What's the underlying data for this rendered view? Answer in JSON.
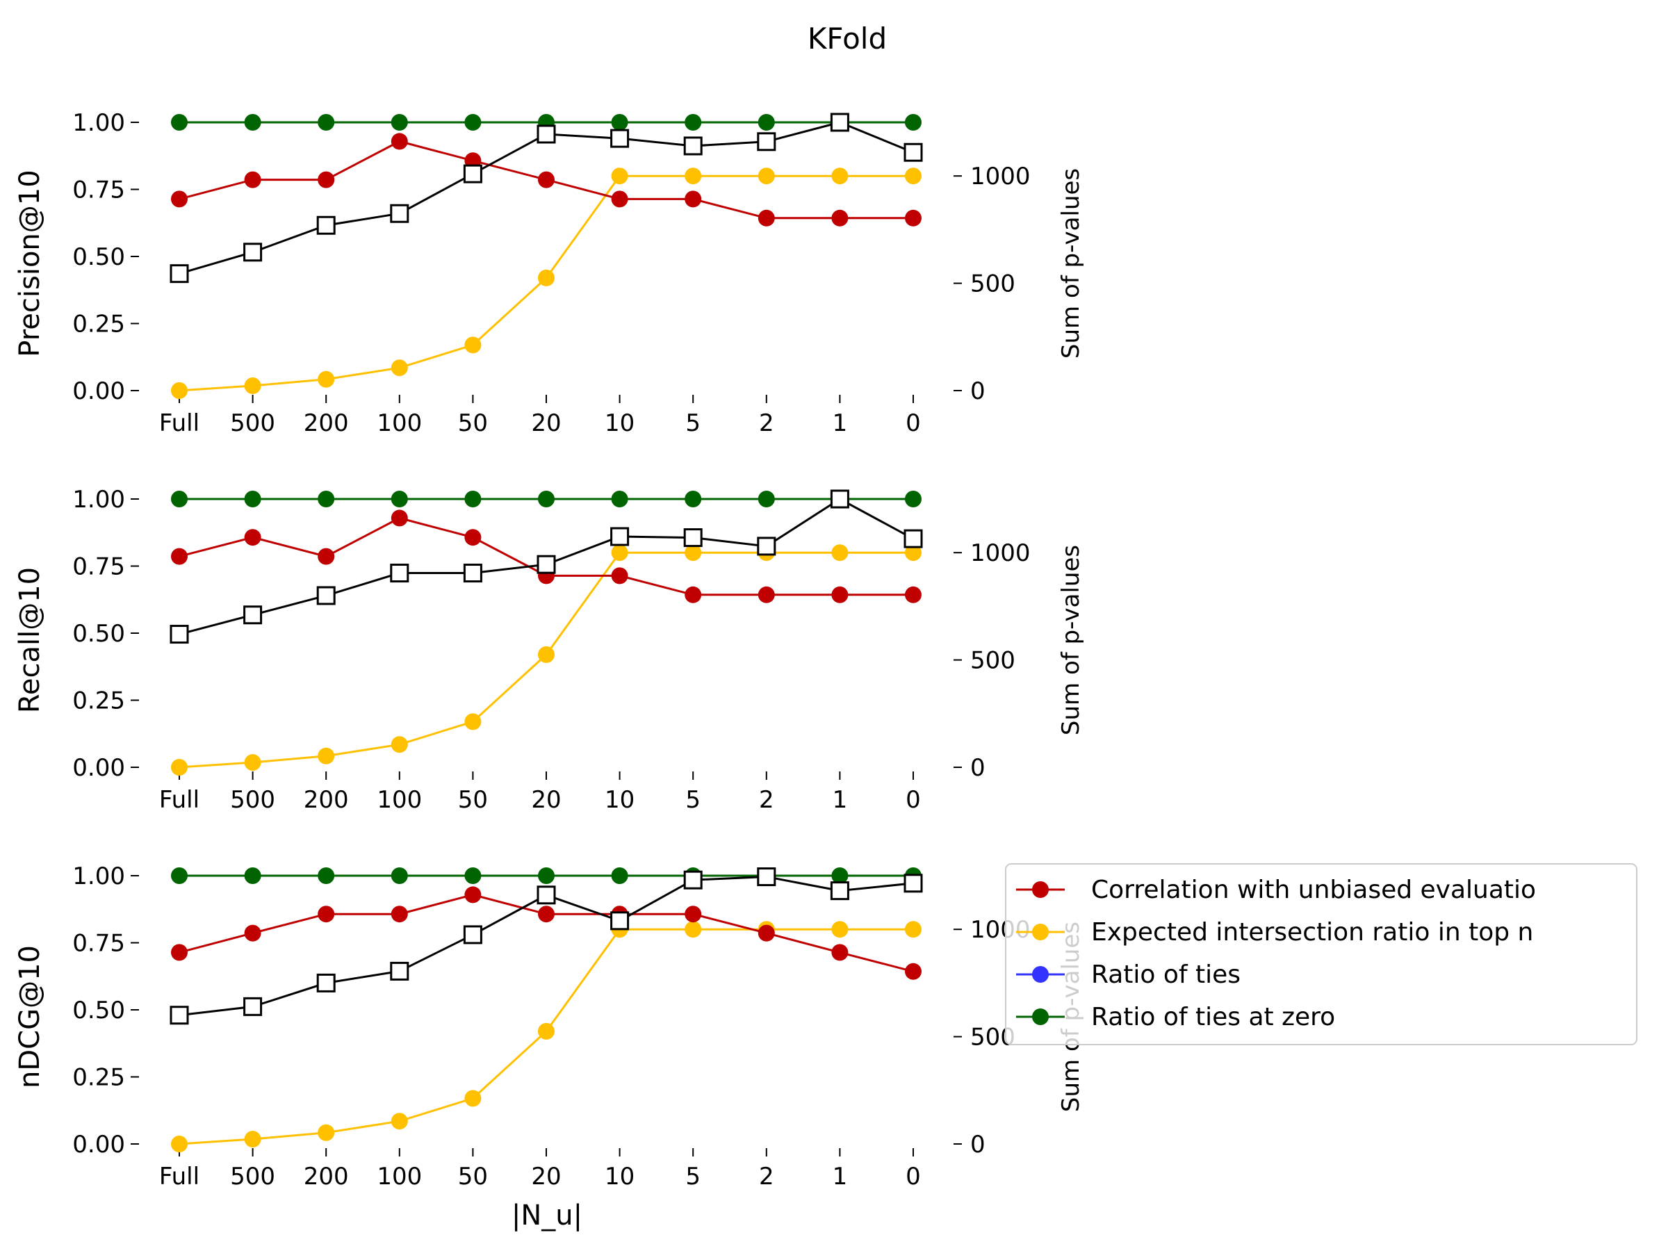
{
  "figure": {
    "title": "KFold",
    "xlabel": "|N_u|"
  },
  "legend": {
    "entries": [
      {
        "label": "Correlation with unbiased evaluatio",
        "color": "#c00000",
        "marker": "circle"
      },
      {
        "label": "Expected intersection ratio in top n",
        "color": "#ffc000",
        "marker": "circle"
      },
      {
        "label": "Ratio of ties",
        "color": "#3333ff",
        "marker": "circle"
      },
      {
        "label": "Ratio of ties at zero",
        "color": "#006400",
        "marker": "circle"
      }
    ]
  },
  "colors": {
    "correlation": "#c00000",
    "expected_intersection": "#ffc000",
    "ties_at_zero": "#006400",
    "sum_p_values": "#000000"
  },
  "chart_data": [
    {
      "type": "line",
      "ylabel": "Precision@10",
      "ylabel_right": "Sum of p-values",
      "categories": [
        "Full",
        "500",
        "200",
        "100",
        "50",
        "20",
        "10",
        "5",
        "2",
        "1",
        "0"
      ],
      "ylim": [
        0,
        1
      ],
      "yticks": [
        "0.00",
        "0.25",
        "0.50",
        "0.75",
        "1.00"
      ],
      "ylim_right": [
        0,
        1250
      ],
      "yticks_right": [
        "0",
        "500",
        "1000"
      ],
      "series": [
        {
          "name": "Expected intersection ratio in top n",
          "axis": "left",
          "color": "#ffc000",
          "values": [
            0.0,
            0.018,
            0.042,
            0.085,
            0.17,
            0.42,
            0.8,
            0.8,
            0.8,
            0.8,
            0.8
          ]
        },
        {
          "name": "Correlation with unbiased evaluatio",
          "axis": "left",
          "color": "#c00000",
          "values": [
            0.714,
            0.786,
            0.786,
            0.929,
            0.857,
            0.786,
            0.714,
            0.714,
            0.643,
            0.643,
            0.643
          ]
        },
        {
          "name": "Ratio of ties at zero",
          "axis": "left",
          "color": "#006400",
          "values": [
            1,
            1,
            1,
            1,
            1,
            1,
            1,
            1,
            1,
            1,
            1
          ]
        },
        {
          "axis": "right",
          "color": "#000000",
          "marker": "square",
          "values": [
            545,
            645,
            770,
            825,
            1010,
            1195,
            1175,
            1140,
            1160,
            1250,
            1110
          ]
        }
      ]
    },
    {
      "type": "line",
      "ylabel": "Recall@10",
      "ylabel_right": "Sum of p-values",
      "categories": [
        "Full",
        "500",
        "200",
        "100",
        "50",
        "20",
        "10",
        "5",
        "2",
        "1",
        "0"
      ],
      "ylim": [
        0,
        1
      ],
      "yticks": [
        "0.00",
        "0.25",
        "0.50",
        "0.75",
        "1.00"
      ],
      "ylim_right": [
        0,
        1250
      ],
      "yticks_right": [
        "0",
        "500",
        "1000"
      ],
      "series": [
        {
          "name": "Expected intersection ratio in top n",
          "axis": "left",
          "color": "#ffc000",
          "values": [
            0.0,
            0.018,
            0.042,
            0.085,
            0.17,
            0.42,
            0.8,
            0.8,
            0.8,
            0.8,
            0.8
          ]
        },
        {
          "name": "Correlation with unbiased evaluatio",
          "axis": "left",
          "color": "#c00000",
          "values": [
            0.786,
            0.857,
            0.786,
            0.929,
            0.857,
            0.714,
            0.714,
            0.643,
            0.643,
            0.643,
            0.643
          ]
        },
        {
          "name": "Ratio of ties at zero",
          "axis": "left",
          "color": "#006400",
          "values": [
            1,
            1,
            1,
            1,
            1,
            1,
            1,
            1,
            1,
            1,
            1
          ]
        },
        {
          "axis": "right",
          "color": "#000000",
          "marker": "square",
          "values": [
            620,
            710,
            800,
            905,
            905,
            945,
            1075,
            1070,
            1030,
            1250,
            1065
          ]
        }
      ]
    },
    {
      "type": "line",
      "ylabel": "nDCG@10",
      "ylabel_right": "Sum of p-values",
      "categories": [
        "Full",
        "500",
        "200",
        "100",
        "50",
        "20",
        "10",
        "5",
        "2",
        "1",
        "0"
      ],
      "ylim": [
        0,
        1
      ],
      "yticks": [
        "0.00",
        "0.25",
        "0.50",
        "0.75",
        "1.00"
      ],
      "ylim_right": [
        0,
        1250
      ],
      "yticks_right": [
        "0",
        "500",
        "1000"
      ],
      "series": [
        {
          "name": "Expected intersection ratio in top n",
          "axis": "left",
          "color": "#ffc000",
          "values": [
            0.0,
            0.018,
            0.042,
            0.085,
            0.17,
            0.42,
            0.8,
            0.8,
            0.8,
            0.8,
            0.8
          ]
        },
        {
          "name": "Correlation with unbiased evaluatio",
          "axis": "left",
          "color": "#c00000",
          "values": [
            0.714,
            0.786,
            0.857,
            0.857,
            0.929,
            0.857,
            0.857,
            0.857,
            0.786,
            0.714,
            0.643
          ]
        },
        {
          "name": "Ratio of ties at zero",
          "axis": "left",
          "color": "#006400",
          "values": [
            1,
            1,
            1,
            1,
            1,
            1,
            1,
            1,
            1,
            1,
            1
          ]
        },
        {
          "axis": "right",
          "color": "#000000",
          "marker": "square",
          "values": [
            600,
            640,
            750,
            805,
            975,
            1160,
            1040,
            1230,
            1245,
            1180,
            1215
          ]
        }
      ]
    }
  ]
}
